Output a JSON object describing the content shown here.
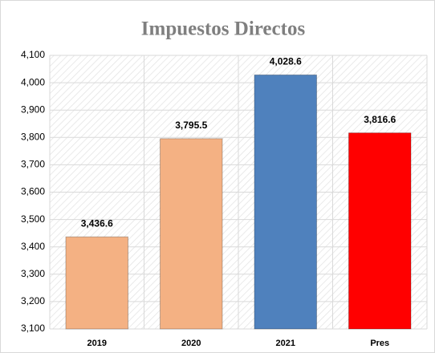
{
  "chart_data": {
    "type": "bar",
    "title": "Impuestos Directos",
    "categories": [
      "2019",
      "2020",
      "2021",
      "Pres"
    ],
    "values": [
      3436.6,
      3795.5,
      4028.6,
      3816.6
    ],
    "value_labels": [
      "3,436.6",
      "3,795.5",
      "4,028.6",
      "3,816.6"
    ],
    "colors": [
      "#f4b183",
      "#f4b183",
      "#4f81bd",
      "#ff0000"
    ],
    "ylim": [
      3100,
      4100
    ],
    "yticks": [
      {
        "value": 3100,
        "label": "3,100"
      },
      {
        "value": 3200,
        "label": "3,200"
      },
      {
        "value": 3300,
        "label": "3,300"
      },
      {
        "value": 3400,
        "label": "3,400"
      },
      {
        "value": 3500,
        "label": "3,500"
      },
      {
        "value": 3600,
        "label": "3,600"
      },
      {
        "value": 3700,
        "label": "3,700"
      },
      {
        "value": 3800,
        "label": "3,800"
      },
      {
        "value": 3900,
        "label": "3,900"
      },
      {
        "value": 4000,
        "label": "4,000"
      },
      {
        "value": 4100,
        "label": "4,100"
      }
    ],
    "grid": true
  }
}
